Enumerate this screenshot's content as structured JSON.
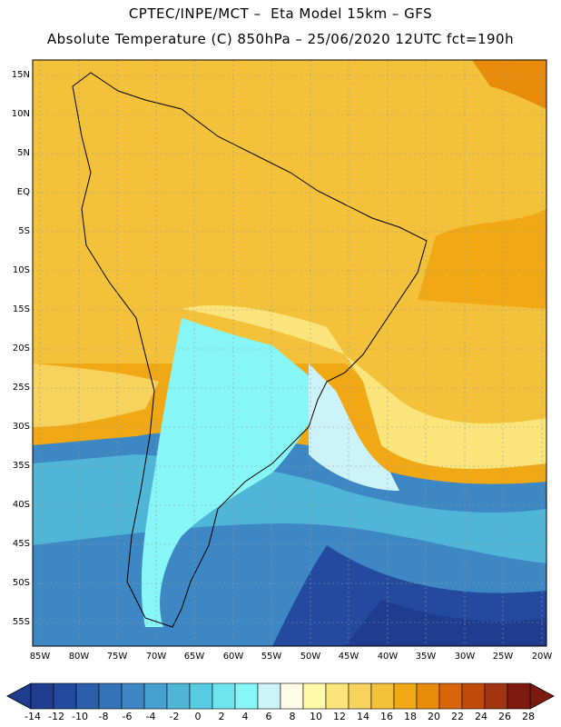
{
  "header": {
    "line1": "CPTEC/INPE/MCT –  Eta Model 15km – GFS",
    "line2": "Absolute Temperature (C) 850hPa – 25/06/2020 12UTC fct=190h"
  },
  "map": {
    "lat_labels": [
      "15N",
      "10N",
      "5N",
      "EQ",
      "5S",
      "10S",
      "15S",
      "20S",
      "25S",
      "30S",
      "35S",
      "40S",
      "45S",
      "50S",
      "55S"
    ],
    "lon_labels": [
      "85W",
      "80W",
      "75W",
      "70W",
      "65W",
      "60W",
      "55W",
      "50W",
      "45W",
      "40W",
      "35W",
      "30W",
      "25W",
      "20W"
    ]
  },
  "colorbar": {
    "labels": [
      "-14",
      "-12",
      "-10",
      "-8",
      "-6",
      "-4",
      "-2",
      "0",
      "2",
      "4",
      "6",
      "8",
      "10",
      "12",
      "14",
      "16",
      "18",
      "20",
      "22",
      "24",
      "26",
      "28"
    ],
    "colors": [
      "#1f3c8f",
      "#234a9e",
      "#2c5fab",
      "#3573b8",
      "#3d87c4",
      "#46a0cf",
      "#4fb6d8",
      "#57cce3",
      "#6ee4ee",
      "#86f6f6",
      "#cdf3fa",
      "#fffbe6",
      "#fff9a8",
      "#fbe57a",
      "#f7d25c",
      "#f3c13a",
      "#f0a814",
      "#e88a0a",
      "#d8650a",
      "#c04a0a",
      "#a33412",
      "#7d1a10"
    ]
  }
}
